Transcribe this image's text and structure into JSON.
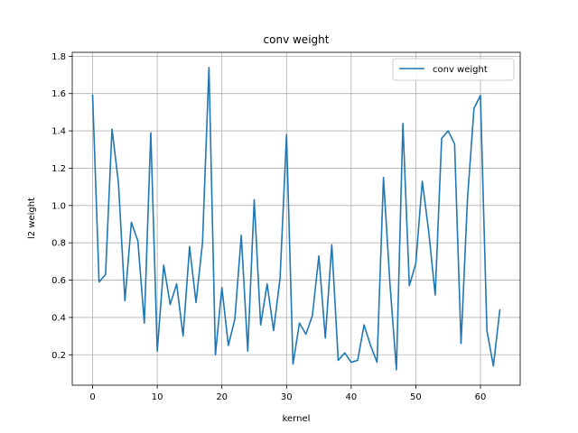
{
  "chart_data": {
    "type": "line",
    "title": "conv weight",
    "xlabel": "kernel",
    "ylabel": "l2 weight",
    "xlim": [
      -3.15,
      66.15
    ],
    "ylim": [
      0.037,
      1.821
    ],
    "xticks": [
      0,
      10,
      20,
      30,
      40,
      50,
      60
    ],
    "xtick_labels": [
      "0",
      "10",
      "20",
      "30",
      "40",
      "50",
      "60"
    ],
    "yticks": [
      0.2,
      0.4,
      0.6,
      0.8,
      1.0,
      1.2,
      1.4,
      1.6,
      1.8
    ],
    "ytick_labels": [
      "0.2",
      "0.4",
      "0.6",
      "0.8",
      "1.0",
      "1.2",
      "1.4",
      "1.6",
      "1.8"
    ],
    "grid": true,
    "legend_position": "top-right",
    "series": [
      {
        "name": "conv weight",
        "color": "#1f77b4",
        "x": [
          0,
          1,
          2,
          3,
          4,
          5,
          6,
          7,
          8,
          9,
          10,
          11,
          12,
          13,
          14,
          15,
          16,
          17,
          18,
          19,
          20,
          21,
          22,
          23,
          24,
          25,
          26,
          27,
          28,
          29,
          30,
          31,
          32,
          33,
          34,
          35,
          36,
          37,
          38,
          39,
          40,
          41,
          42,
          43,
          44,
          45,
          46,
          47,
          48,
          49,
          50,
          51,
          52,
          53,
          54,
          55,
          56,
          57,
          58,
          59,
          60,
          61,
          62,
          63
        ],
        "values": [
          1.59,
          0.59,
          0.63,
          1.41,
          1.12,
          0.49,
          0.91,
          0.81,
          0.37,
          1.39,
          0.22,
          0.68,
          0.47,
          0.58,
          0.3,
          0.78,
          0.48,
          0.8,
          1.74,
          0.2,
          0.56,
          0.25,
          0.39,
          0.84,
          0.22,
          1.03,
          0.36,
          0.58,
          0.33,
          0.61,
          1.38,
          0.15,
          0.37,
          0.31,
          0.41,
          0.73,
          0.29,
          0.79,
          0.17,
          0.21,
          0.16,
          0.17,
          0.36,
          0.25,
          0.16,
          1.15,
          0.58,
          0.12,
          1.44,
          0.57,
          0.69,
          1.13,
          0.86,
          0.52,
          1.36,
          1.4,
          1.33,
          0.26,
          1.04,
          1.52,
          1.59,
          0.33,
          0.14,
          0.44
        ]
      }
    ]
  }
}
